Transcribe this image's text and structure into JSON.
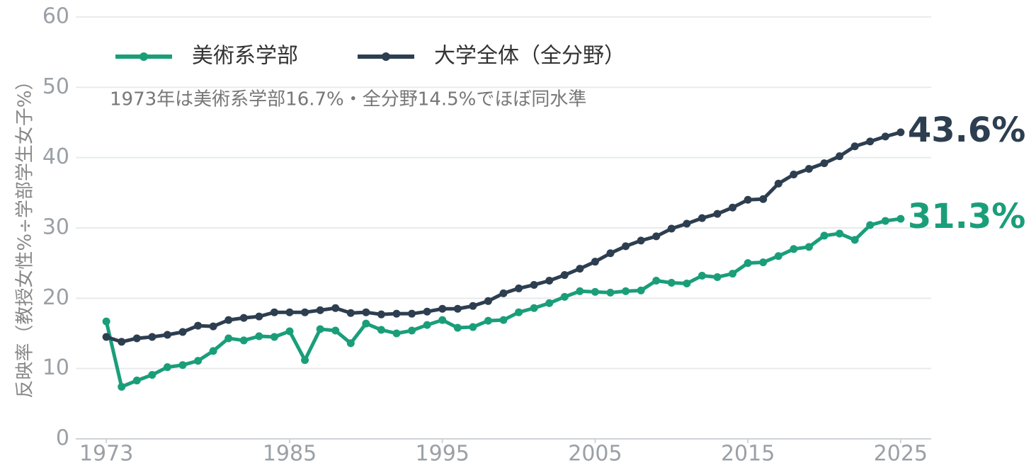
{
  "chart_data": {
    "type": "line",
    "y_label": "反映率（教授女性%÷学部学生女子%）",
    "annotation": "1973年は美術系学部16.7%・全分野14.5%でほぼ同水準",
    "legend": "upper left",
    "grid": true,
    "xlim": [
      1971,
      2027
    ],
    "xticks": [
      1973,
      1985,
      1995,
      2005,
      2015,
      2025
    ],
    "ylim": [
      0,
      60
    ],
    "yticks": [
      0,
      10,
      20,
      30,
      40,
      50,
      60
    ],
    "x": [
      1973,
      1974,
      1975,
      1976,
      1977,
      1978,
      1979,
      1980,
      1981,
      1982,
      1983,
      1984,
      1985,
      1986,
      1987,
      1988,
      1989,
      1990,
      1991,
      1992,
      1993,
      1994,
      1995,
      1996,
      1997,
      1998,
      1999,
      2000,
      2001,
      2002,
      2003,
      2004,
      2005,
      2006,
      2007,
      2008,
      2009,
      2010,
      2011,
      2012,
      2013,
      2014,
      2015,
      2016,
      2017,
      2018,
      2019,
      2020,
      2021,
      2022,
      2023,
      2024,
      2025
    ],
    "series": [
      {
        "name": "美術系学部",
        "color": "#1a9e7a",
        "values": [
          16.7,
          7.4,
          8.3,
          9.1,
          10.2,
          10.5,
          11.1,
          12.5,
          14.3,
          14.0,
          14.6,
          14.5,
          15.3,
          11.2,
          15.6,
          15.4,
          13.6,
          16.4,
          15.5,
          15.0,
          15.4,
          16.2,
          16.9,
          15.8,
          15.9,
          16.8,
          16.9,
          18.0,
          18.6,
          19.3,
          20.2,
          21.0,
          20.9,
          20.8,
          21.0,
          21.1,
          22.5,
          22.2,
          22.1,
          23.2,
          23.0,
          23.5,
          25.0,
          25.1,
          26.0,
          27.0,
          27.3,
          28.9,
          29.2,
          28.3,
          30.4,
          31.0,
          31.3
        ],
        "value_labels": [
          null,
          null,
          null,
          null,
          null,
          null,
          null,
          null,
          null,
          null,
          null,
          null,
          null,
          null,
          null,
          null,
          null,
          null,
          null,
          null,
          null,
          null,
          null,
          null,
          null,
          null,
          null,
          null,
          null,
          null,
          null,
          null,
          null,
          null,
          null,
          null,
          null,
          null,
          null,
          null,
          null,
          null,
          null,
          null,
          null,
          null,
          null,
          null,
          null,
          null,
          null,
          null,
          "31.3%"
        ]
      },
      {
        "name": "大学全体（全分野）",
        "color": "#2d3e50",
        "values": [
          14.5,
          13.8,
          14.3,
          14.5,
          14.8,
          15.2,
          16.1,
          16.0,
          16.9,
          17.2,
          17.4,
          18.0,
          18.0,
          18.0,
          18.3,
          18.6,
          17.9,
          18.0,
          17.7,
          17.8,
          17.8,
          18.1,
          18.5,
          18.5,
          18.9,
          19.6,
          20.7,
          21.4,
          21.9,
          22.5,
          23.3,
          24.2,
          25.2,
          26.4,
          27.4,
          28.2,
          28.8,
          29.9,
          30.6,
          31.4,
          32.0,
          32.9,
          34.0,
          34.1,
          36.3,
          37.6,
          38.4,
          39.2,
          40.2,
          41.6,
          42.3,
          43.0,
          43.6
        ],
        "value_labels": [
          null,
          null,
          null,
          null,
          null,
          null,
          null,
          null,
          null,
          null,
          null,
          null,
          null,
          null,
          null,
          null,
          null,
          null,
          null,
          null,
          null,
          null,
          null,
          null,
          null,
          null,
          null,
          null,
          null,
          null,
          null,
          null,
          null,
          null,
          null,
          null,
          null,
          null,
          null,
          null,
          null,
          null,
          null,
          null,
          null,
          null,
          null,
          null,
          null,
          null,
          null,
          null,
          "43.6%"
        ]
      }
    ]
  }
}
